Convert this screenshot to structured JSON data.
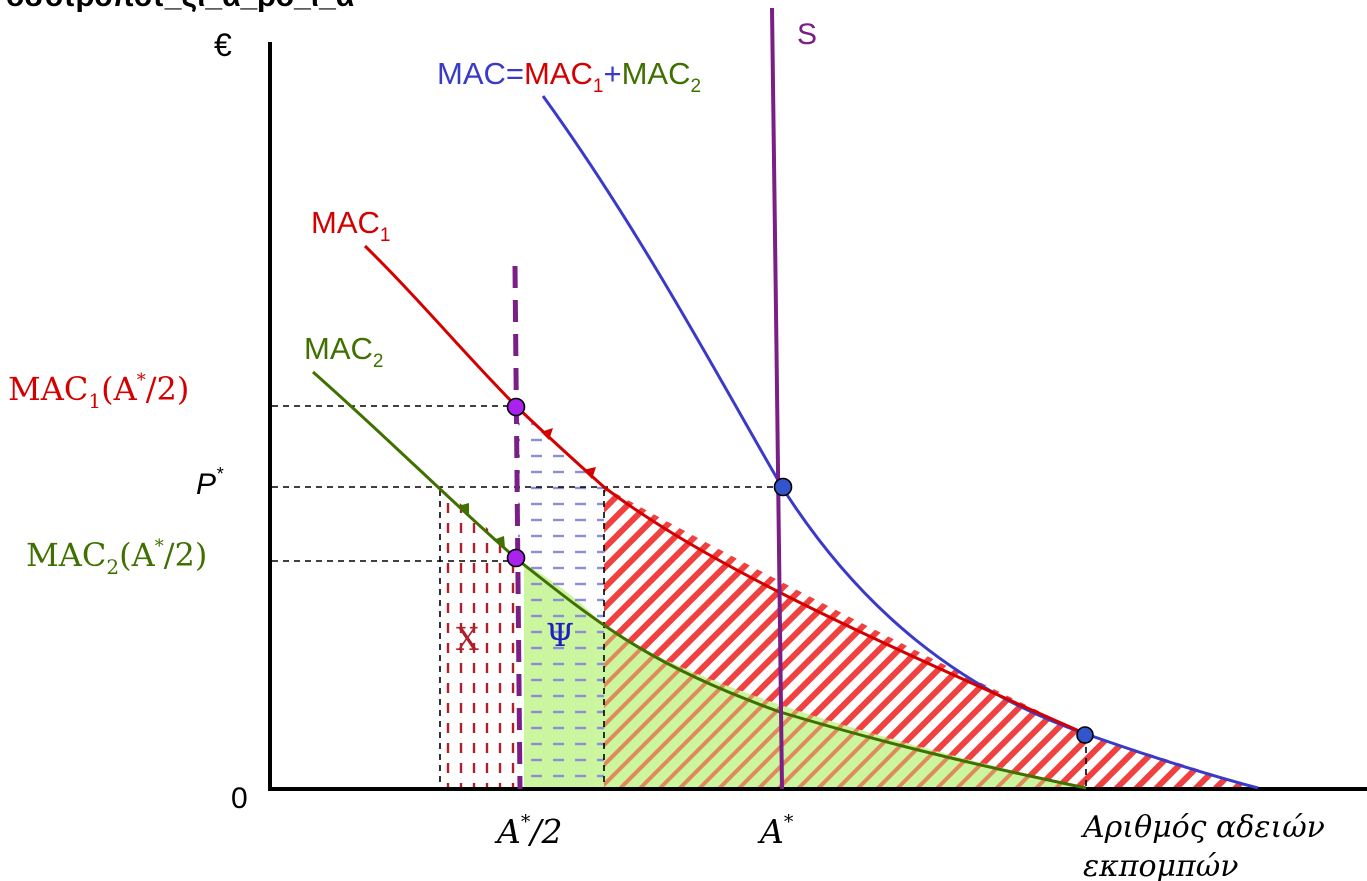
{
  "top_fragment": "οσοτροποτ_ςι_α_ρο_ι_α",
  "y_axis": {
    "unit": "€",
    "origin": "0"
  },
  "x_axis": {
    "label_line1": "Αριθμός αδειών",
    "label_line2": "εκπομπών",
    "tick_half": {
      "base": "A",
      "sup": "*",
      "rest": "/2"
    },
    "tick_full": {
      "base": "A",
      "sup": "*"
    }
  },
  "curves": {
    "mac_sum": {
      "pre": "MAC=",
      "p1": "MAC",
      "s1": "1",
      "plus": "+",
      "p2": "MAC",
      "s2": "2",
      "color": "#3a3ac8"
    },
    "mac1": {
      "base": "MAC",
      "sub": "1",
      "color": "#d40000"
    },
    "mac2": {
      "base": "MAC",
      "sub": "2",
      "color": "#3f7000"
    },
    "supply": {
      "label": "S",
      "color": "#7a1f86"
    }
  },
  "y_levels": {
    "mac1_half": {
      "base": "MAC",
      "sub": "1",
      "arg_open": "(A",
      "arg_sup": "*",
      "arg_close": "/2)"
    },
    "p_star": {
      "base": "P",
      "sup": "*"
    },
    "mac2_half": {
      "base": "MAC",
      "sub": "2",
      "arg_open": "(A",
      "arg_sup": "*",
      "arg_close": "/2)"
    }
  },
  "areas": {
    "X": {
      "label": "X",
      "color": "#b0202a"
    },
    "Psi": {
      "label": "Ψ",
      "color": "#2020c0"
    }
  },
  "colors": {
    "point_blue": "#3355cc",
    "point_purple": "#aa22ee",
    "hatch_red": "#f04040",
    "fill_green": "#ccf5a0",
    "dash_blue": "#7a80cc"
  }
}
